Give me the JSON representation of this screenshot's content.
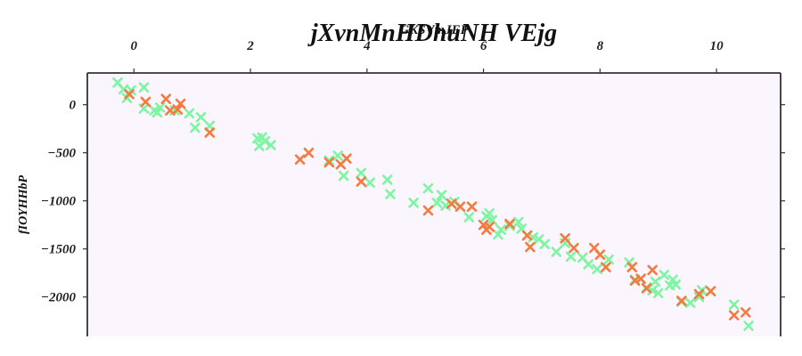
{
  "chart_data": {
    "type": "scatter",
    "title": "jXvnMnHDhuNH VEjg",
    "xlabel": "GKSVmJEP",
    "ylabel": "fIOYHHbP",
    "xlim": [
      -0.8,
      11.1
    ],
    "ylim": [
      -2410,
      330
    ],
    "x_ticks": [
      0,
      2,
      4,
      6,
      8,
      10
    ],
    "y_ticks": [
      0,
      -500,
      -1000,
      -1500,
      -2000
    ],
    "x_axis_position": "top",
    "grid": false,
    "background": "#fbf5fd",
    "series": [
      {
        "color": "#7ef5a3",
        "points": [
          [
            -0.28,
            230
          ],
          [
            -0.18,
            160
          ],
          [
            -0.12,
            70
          ],
          [
            -0.05,
            150
          ],
          [
            0.17,
            180
          ],
          [
            0.17,
            -40
          ],
          [
            0.35,
            -60
          ],
          [
            0.4,
            -80
          ],
          [
            0.45,
            -30
          ],
          [
            0.7,
            -60
          ],
          [
            0.95,
            -90
          ],
          [
            1.05,
            -240
          ],
          [
            1.15,
            -130
          ],
          [
            1.3,
            -220
          ],
          [
            2.12,
            -350
          ],
          [
            2.15,
            -430
          ],
          [
            2.2,
            -340
          ],
          [
            2.25,
            -380
          ],
          [
            2.35,
            -420
          ],
          [
            3.35,
            -580
          ],
          [
            3.5,
            -530
          ],
          [
            3.6,
            -740
          ],
          [
            3.9,
            -710
          ],
          [
            4.05,
            -810
          ],
          [
            4.35,
            -780
          ],
          [
            4.4,
            -930
          ],
          [
            4.8,
            -1020
          ],
          [
            5.05,
            -870
          ],
          [
            5.2,
            -1020
          ],
          [
            5.28,
            -940
          ],
          [
            5.35,
            -1050
          ],
          [
            5.5,
            -1010
          ],
          [
            5.75,
            -1170
          ],
          [
            6.05,
            -1160
          ],
          [
            6.1,
            -1130
          ],
          [
            6.15,
            -1200
          ],
          [
            6.25,
            -1350
          ],
          [
            6.3,
            -1300
          ],
          [
            6.45,
            -1260
          ],
          [
            6.6,
            -1220
          ],
          [
            6.65,
            -1290
          ],
          [
            6.85,
            -1380
          ],
          [
            6.95,
            -1400
          ],
          [
            7.05,
            -1450
          ],
          [
            7.25,
            -1530
          ],
          [
            7.4,
            -1440
          ],
          [
            7.5,
            -1580
          ],
          [
            7.7,
            -1590
          ],
          [
            7.8,
            -1660
          ],
          [
            7.95,
            -1710
          ],
          [
            8.15,
            -1610
          ],
          [
            8.5,
            -1640
          ],
          [
            8.6,
            -1820
          ],
          [
            8.8,
            -1900
          ],
          [
            8.9,
            -1930
          ],
          [
            8.95,
            -1840
          ],
          [
            9.0,
            -1960
          ],
          [
            9.1,
            -1770
          ],
          [
            9.2,
            -1880
          ],
          [
            9.25,
            -1820
          ],
          [
            9.3,
            -1870
          ],
          [
            9.4,
            -2050
          ],
          [
            9.55,
            -2060
          ],
          [
            9.7,
            -2000
          ],
          [
            9.75,
            -1930
          ],
          [
            10.3,
            -2080
          ],
          [
            10.55,
            -2300
          ]
        ]
      },
      {
        "color": "#f57a40",
        "points": [
          [
            -0.08,
            110
          ],
          [
            0.2,
            30
          ],
          [
            0.55,
            60
          ],
          [
            0.62,
            -60
          ],
          [
            0.75,
            -50
          ],
          [
            0.8,
            10
          ],
          [
            1.3,
            -290
          ],
          [
            2.85,
            -570
          ],
          [
            3.0,
            -500
          ],
          [
            3.35,
            -600
          ],
          [
            3.55,
            -620
          ],
          [
            3.65,
            -560
          ],
          [
            3.9,
            -800
          ],
          [
            5.05,
            -1100
          ],
          [
            5.45,
            -1030
          ],
          [
            5.6,
            -1060
          ],
          [
            5.8,
            -1060
          ],
          [
            6.0,
            -1250
          ],
          [
            6.05,
            -1300
          ],
          [
            6.1,
            -1270
          ],
          [
            6.45,
            -1240
          ],
          [
            6.75,
            -1360
          ],
          [
            6.8,
            -1480
          ],
          [
            7.4,
            -1390
          ],
          [
            7.55,
            -1490
          ],
          [
            7.9,
            -1490
          ],
          [
            8.0,
            -1560
          ],
          [
            8.1,
            -1690
          ],
          [
            8.55,
            -1690
          ],
          [
            8.6,
            -1830
          ],
          [
            8.7,
            -1810
          ],
          [
            8.8,
            -1910
          ],
          [
            8.9,
            -1720
          ],
          [
            9.4,
            -2040
          ],
          [
            9.7,
            -1970
          ],
          [
            9.9,
            -1940
          ],
          [
            10.3,
            -2190
          ],
          [
            10.5,
            -2160
          ]
        ]
      }
    ]
  }
}
